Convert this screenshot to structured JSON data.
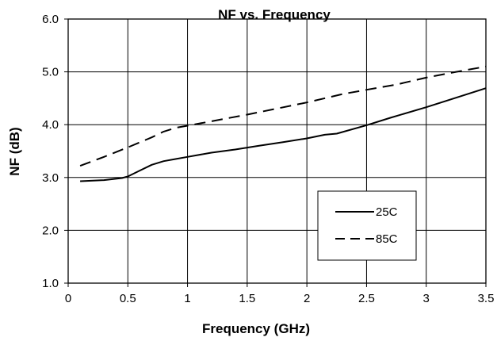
{
  "chart_data": {
    "type": "line",
    "title": "NF vs. Frequency",
    "xlabel": "Frequency (GHz)",
    "ylabel": "NF (dB)",
    "xlim": [
      0,
      3.5
    ],
    "ylim": [
      1.0,
      6.0
    ],
    "x_ticks": [
      0,
      0.5,
      1,
      1.5,
      2,
      2.5,
      3,
      3.5
    ],
    "x_tick_labels": [
      "0",
      "0.5",
      "1",
      "1.5",
      "2",
      "2.5",
      "3",
      "3.5"
    ],
    "y_ticks": [
      1.0,
      2.0,
      3.0,
      4.0,
      5.0,
      6.0
    ],
    "y_tick_labels": [
      "1.0",
      "2.0",
      "3.0",
      "4.0",
      "5.0",
      "6.0"
    ],
    "grid": true,
    "legend_position": "bottom-right",
    "series": [
      {
        "name": "25C",
        "line_style": "solid",
        "color": "#000000",
        "x": [
          0.1,
          0.3,
          0.45,
          0.5,
          0.6,
          0.7,
          0.8,
          0.9,
          1.0,
          1.2,
          1.4,
          1.6,
          1.8,
          2.0,
          2.15,
          2.25,
          2.5,
          2.7,
          3.0,
          3.25,
          3.5
        ],
        "y": [
          2.93,
          2.95,
          2.99,
          3.02,
          3.13,
          3.24,
          3.31,
          3.35,
          3.39,
          3.47,
          3.53,
          3.6,
          3.67,
          3.74,
          3.81,
          3.83,
          3.99,
          4.13,
          4.33,
          4.51,
          4.69
        ]
      },
      {
        "name": "85C",
        "line_style": "dashed",
        "color": "#000000",
        "x": [
          0.1,
          0.3,
          0.5,
          0.7,
          0.8,
          0.9,
          1.0,
          1.5,
          2.0,
          2.3,
          2.5,
          2.75,
          3.0,
          3.25,
          3.5
        ],
        "y": [
          3.22,
          3.39,
          3.57,
          3.76,
          3.87,
          3.94,
          3.98,
          4.19,
          4.42,
          4.58,
          4.66,
          4.76,
          4.89,
          5.0,
          5.1
        ]
      }
    ]
  }
}
